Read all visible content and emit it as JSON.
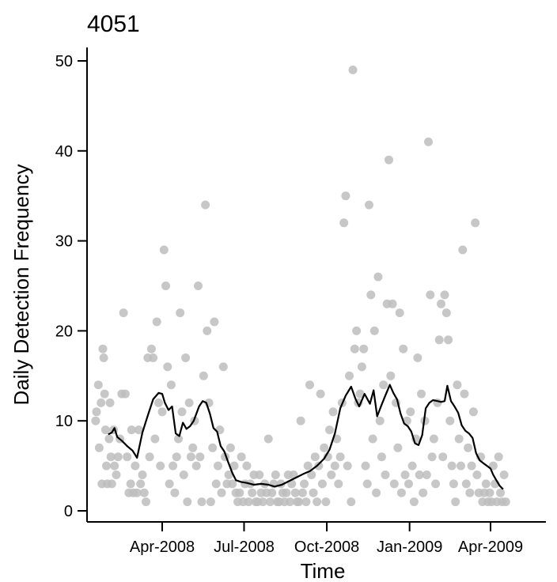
{
  "chart_data": {
    "type": "scatter",
    "title": "4051",
    "xlabel": "Time",
    "ylabel": "Daily Detection Frequency",
    "ylim": [
      0,
      50
    ],
    "xlim": [
      "2008-01-15",
      "2009-06-01"
    ],
    "x_ticks": [
      {
        "date": "2008-04-01",
        "label": "Apr-2008"
      },
      {
        "date": "2008-07-01",
        "label": "Jul-2008"
      },
      {
        "date": "2008-10-01",
        "label": "Oct-2008"
      },
      {
        "date": "2009-01-01",
        "label": "Jan-2009"
      },
      {
        "date": "2009-04-01",
        "label": "Apr-2009"
      }
    ],
    "y_ticks": [
      0,
      10,
      20,
      30,
      40,
      50
    ],
    "grid": false,
    "point_color": "#bdbdbd",
    "line_color": "#000000",
    "points": [
      [
        "2008-01-18",
        10
      ],
      [
        "2008-01-19",
        11
      ],
      [
        "2008-01-21",
        14
      ],
      [
        "2008-01-22",
        7
      ],
      [
        "2008-01-24",
        12
      ],
      [
        "2008-01-25",
        3
      ],
      [
        "2008-01-26",
        18
      ],
      [
        "2008-01-27",
        17
      ],
      [
        "2008-01-28",
        13
      ],
      [
        "2008-01-29",
        9
      ],
      [
        "2008-01-30",
        5
      ],
      [
        "2008-01-31",
        3
      ],
      [
        "2008-02-02",
        8
      ],
      [
        "2008-02-03",
        12
      ],
      [
        "2008-02-04",
        6
      ],
      [
        "2008-02-05",
        3
      ],
      [
        "2008-02-07",
        9
      ],
      [
        "2008-02-08",
        5
      ],
      [
        "2008-02-10",
        4
      ],
      [
        "2008-02-12",
        6
      ],
      [
        "2008-02-14",
        8
      ],
      [
        "2008-02-16",
        13
      ],
      [
        "2008-02-18",
        22
      ],
      [
        "2008-02-20",
        13
      ],
      [
        "2008-02-22",
        6
      ],
      [
        "2008-02-24",
        2
      ],
      [
        "2008-02-26",
        3
      ],
      [
        "2008-02-27",
        9
      ],
      [
        "2008-02-29",
        2
      ],
      [
        "2008-03-02",
        5
      ],
      [
        "2008-03-04",
        2
      ],
      [
        "2008-03-06",
        9
      ],
      [
        "2008-03-08",
        3
      ],
      [
        "2008-03-10",
        4
      ],
      [
        "2008-03-12",
        2
      ],
      [
        "2008-03-14",
        1
      ],
      [
        "2008-03-16",
        17
      ],
      [
        "2008-03-18",
        6
      ],
      [
        "2008-03-20",
        18
      ],
      [
        "2008-03-22",
        17
      ],
      [
        "2008-03-24",
        8
      ],
      [
        "2008-03-26",
        21
      ],
      [
        "2008-03-28",
        12
      ],
      [
        "2008-03-30",
        5
      ],
      [
        "2008-04-01",
        11
      ],
      [
        "2008-04-03",
        29
      ],
      [
        "2008-04-05",
        25
      ],
      [
        "2008-04-07",
        16
      ],
      [
        "2008-04-09",
        3
      ],
      [
        "2008-04-11",
        14
      ],
      [
        "2008-04-13",
        5
      ],
      [
        "2008-04-15",
        2
      ],
      [
        "2008-04-17",
        6
      ],
      [
        "2008-04-19",
        8
      ],
      [
        "2008-04-21",
        22
      ],
      [
        "2008-04-23",
        11
      ],
      [
        "2008-04-25",
        4
      ],
      [
        "2008-04-27",
        17
      ],
      [
        "2008-04-29",
        1
      ],
      [
        "2008-05-01",
        12
      ],
      [
        "2008-05-03",
        6
      ],
      [
        "2008-05-05",
        7
      ],
      [
        "2008-05-07",
        10
      ],
      [
        "2008-05-09",
        5
      ],
      [
        "2008-05-11",
        25
      ],
      [
        "2008-05-13",
        6
      ],
      [
        "2008-05-15",
        1
      ],
      [
        "2008-05-17",
        15
      ],
      [
        "2008-05-19",
        34
      ],
      [
        "2008-05-21",
        20
      ],
      [
        "2008-05-23",
        12
      ],
      [
        "2008-05-25",
        1
      ],
      [
        "2008-05-27",
        7
      ],
      [
        "2008-05-29",
        21
      ],
      [
        "2008-05-31",
        3
      ],
      [
        "2008-06-02",
        5
      ],
      [
        "2008-06-04",
        9
      ],
      [
        "2008-06-06",
        2
      ],
      [
        "2008-06-08",
        16
      ],
      [
        "2008-06-10",
        6
      ],
      [
        "2008-06-12",
        3
      ],
      [
        "2008-06-14",
        4
      ],
      [
        "2008-06-16",
        7
      ],
      [
        "2008-06-18",
        3
      ],
      [
        "2008-06-20",
        5
      ],
      [
        "2008-06-22",
        2
      ],
      [
        "2008-06-24",
        1
      ],
      [
        "2008-06-26",
        2
      ],
      [
        "2008-06-28",
        6
      ],
      [
        "2008-06-30",
        1
      ],
      [
        "2008-07-02",
        3
      ],
      [
        "2008-07-04",
        5
      ],
      [
        "2008-07-06",
        1
      ],
      [
        "2008-07-08",
        3
      ],
      [
        "2008-07-10",
        2
      ],
      [
        "2008-07-12",
        4
      ],
      [
        "2008-07-14",
        1
      ],
      [
        "2008-07-16",
        1
      ],
      [
        "2008-07-18",
        4
      ],
      [
        "2008-07-20",
        2
      ],
      [
        "2008-07-22",
        1
      ],
      [
        "2008-07-24",
        3
      ],
      [
        "2008-07-26",
        2
      ],
      [
        "2008-07-28",
        8
      ],
      [
        "2008-07-30",
        1
      ],
      [
        "2008-08-01",
        2
      ],
      [
        "2008-08-03",
        3
      ],
      [
        "2008-08-05",
        4
      ],
      [
        "2008-08-07",
        1
      ],
      [
        "2008-08-09",
        1
      ],
      [
        "2008-08-11",
        3
      ],
      [
        "2008-08-13",
        2
      ],
      [
        "2008-08-15",
        1
      ],
      [
        "2008-08-17",
        2
      ],
      [
        "2008-08-19",
        4
      ],
      [
        "2008-08-21",
        1
      ],
      [
        "2008-08-23",
        3
      ],
      [
        "2008-08-25",
        4
      ],
      [
        "2008-08-27",
        2
      ],
      [
        "2008-08-29",
        1
      ],
      [
        "2008-08-31",
        1
      ],
      [
        "2008-09-02",
        10
      ],
      [
        "2008-09-04",
        2
      ],
      [
        "2008-09-06",
        3
      ],
      [
        "2008-09-08",
        1
      ],
      [
        "2008-09-10",
        5
      ],
      [
        "2008-09-12",
        14
      ],
      [
        "2008-09-14",
        4
      ],
      [
        "2008-09-16",
        2
      ],
      [
        "2008-09-18",
        6
      ],
      [
        "2008-09-20",
        1
      ],
      [
        "2008-09-22",
        5
      ],
      [
        "2008-09-24",
        13
      ],
      [
        "2008-09-26",
        3
      ],
      [
        "2008-09-28",
        7
      ],
      [
        "2008-09-30",
        1
      ],
      [
        "2008-10-02",
        6
      ],
      [
        "2008-10-04",
        9
      ],
      [
        "2008-10-06",
        4
      ],
      [
        "2008-10-08",
        11
      ],
      [
        "2008-10-10",
        5
      ],
      [
        "2008-10-12",
        8
      ],
      [
        "2008-10-14",
        3
      ],
      [
        "2008-10-16",
        6
      ],
      [
        "2008-10-18",
        12
      ],
      [
        "2008-10-20",
        32
      ],
      [
        "2008-10-22",
        35
      ],
      [
        "2008-10-24",
        5
      ],
      [
        "2008-10-26",
        15
      ],
      [
        "2008-10-28",
        1
      ],
      [
        "2008-10-30",
        49
      ],
      [
        "2008-11-01",
        18
      ],
      [
        "2008-11-03",
        20
      ],
      [
        "2008-11-05",
        12
      ],
      [
        "2008-11-07",
        13
      ],
      [
        "2008-11-09",
        16
      ],
      [
        "2008-11-11",
        18
      ],
      [
        "2008-11-13",
        5
      ],
      [
        "2008-11-15",
        3
      ],
      [
        "2008-11-17",
        34
      ],
      [
        "2008-11-19",
        24
      ],
      [
        "2008-11-21",
        8
      ],
      [
        "2008-11-23",
        20
      ],
      [
        "2008-11-25",
        2
      ],
      [
        "2008-11-27",
        26
      ],
      [
        "2008-11-29",
        10
      ],
      [
        "2008-12-01",
        6
      ],
      [
        "2008-12-03",
        14
      ],
      [
        "2008-12-05",
        4
      ],
      [
        "2008-12-07",
        23
      ],
      [
        "2008-12-09",
        39
      ],
      [
        "2008-12-11",
        15
      ],
      [
        "2008-12-13",
        23
      ],
      [
        "2008-12-15",
        3
      ],
      [
        "2008-12-17",
        12
      ],
      [
        "2008-12-19",
        7
      ],
      [
        "2008-12-21",
        22
      ],
      [
        "2008-12-23",
        2
      ],
      [
        "2008-12-25",
        18
      ],
      [
        "2008-12-27",
        4
      ],
      [
        "2008-12-29",
        10
      ],
      [
        "2008-12-31",
        3
      ],
      [
        "2009-01-02",
        11
      ],
      [
        "2009-01-04",
        5
      ],
      [
        "2009-01-06",
        1
      ],
      [
        "2009-01-08",
        8
      ],
      [
        "2009-01-10",
        17
      ],
      [
        "2009-01-12",
        4
      ],
      [
        "2009-01-14",
        13
      ],
      [
        "2009-01-16",
        2
      ],
      [
        "2009-01-18",
        10
      ],
      [
        "2009-01-20",
        4
      ],
      [
        "2009-01-22",
        41
      ],
      [
        "2009-01-24",
        24
      ],
      [
        "2009-01-26",
        6
      ],
      [
        "2009-01-28",
        8
      ],
      [
        "2009-01-30",
        3
      ],
      [
        "2009-02-01",
        12
      ],
      [
        "2009-02-03",
        19
      ],
      [
        "2009-02-05",
        23
      ],
      [
        "2009-02-07",
        6
      ],
      [
        "2009-02-09",
        24
      ],
      [
        "2009-02-11",
        22
      ],
      [
        "2009-02-13",
        19
      ],
      [
        "2009-02-15",
        10
      ],
      [
        "2009-02-17",
        5
      ],
      [
        "2009-02-19",
        3
      ],
      [
        "2009-02-21",
        1
      ],
      [
        "2009-02-23",
        14
      ],
      [
        "2009-02-25",
        8
      ],
      [
        "2009-02-27",
        5
      ],
      [
        "2009-03-01",
        29
      ],
      [
        "2009-03-03",
        13
      ],
      [
        "2009-03-05",
        3
      ],
      [
        "2009-03-07",
        7
      ],
      [
        "2009-03-09",
        2
      ],
      [
        "2009-03-11",
        5
      ],
      [
        "2009-03-13",
        11
      ],
      [
        "2009-03-15",
        32
      ],
      [
        "2009-03-17",
        4
      ],
      [
        "2009-03-19",
        2
      ],
      [
        "2009-03-21",
        6
      ],
      [
        "2009-03-23",
        1
      ],
      [
        "2009-03-25",
        2
      ],
      [
        "2009-03-27",
        3
      ],
      [
        "2009-03-29",
        1
      ],
      [
        "2009-03-31",
        2
      ],
      [
        "2009-04-02",
        1
      ],
      [
        "2009-04-04",
        5
      ],
      [
        "2009-04-06",
        3
      ],
      [
        "2009-04-08",
        1
      ],
      [
        "2009-04-10",
        6
      ],
      [
        "2009-04-12",
        2
      ],
      [
        "2009-04-14",
        1
      ],
      [
        "2009-04-16",
        4
      ],
      [
        "2009-04-18",
        1
      ]
    ],
    "trend_line": [
      [
        "2008-02-01",
        8.5
      ],
      [
        "2008-02-05",
        8.7
      ],
      [
        "2008-02-08",
        9.2
      ],
      [
        "2008-02-11",
        8.2
      ],
      [
        "2008-02-16",
        7.8
      ],
      [
        "2008-02-22",
        7.2
      ],
      [
        "2008-02-28",
        6.7
      ],
      [
        "2008-03-04",
        5.9
      ],
      [
        "2008-03-10",
        8.7
      ],
      [
        "2008-03-16",
        10.6
      ],
      [
        "2008-03-22",
        12.4
      ],
      [
        "2008-03-28",
        13.1
      ],
      [
        "2008-04-01",
        13.0
      ],
      [
        "2008-04-04",
        12.0
      ],
      [
        "2008-04-08",
        11.2
      ],
      [
        "2008-04-12",
        11.6
      ],
      [
        "2008-04-16",
        8.6
      ],
      [
        "2008-04-20",
        8.3
      ],
      [
        "2008-04-24",
        9.8
      ],
      [
        "2008-04-28",
        9.1
      ],
      [
        "2008-05-02",
        9.4
      ],
      [
        "2008-05-06",
        10.0
      ],
      [
        "2008-05-12",
        11.6
      ],
      [
        "2008-05-16",
        12.2
      ],
      [
        "2008-05-20",
        12.0
      ],
      [
        "2008-05-24",
        10.8
      ],
      [
        "2008-05-28",
        9.2
      ],
      [
        "2008-06-01",
        8.8
      ],
      [
        "2008-06-05",
        7.2
      ],
      [
        "2008-06-09",
        6.6
      ],
      [
        "2008-06-13",
        5.5
      ],
      [
        "2008-06-18",
        4.2
      ],
      [
        "2008-06-22",
        3.4
      ],
      [
        "2008-06-28",
        3.2
      ],
      [
        "2008-07-04",
        3.1
      ],
      [
        "2008-07-12",
        2.9
      ],
      [
        "2008-07-20",
        3.0
      ],
      [
        "2008-07-28",
        2.9
      ],
      [
        "2008-08-04",
        2.7
      ],
      [
        "2008-08-12",
        2.9
      ],
      [
        "2008-08-20",
        3.3
      ],
      [
        "2008-08-28",
        3.7
      ],
      [
        "2008-09-05",
        4.1
      ],
      [
        "2008-09-12",
        4.4
      ],
      [
        "2008-09-20",
        5.0
      ],
      [
        "2008-09-28",
        5.8
      ],
      [
        "2008-10-04",
        6.8
      ],
      [
        "2008-10-10",
        8.6
      ],
      [
        "2008-10-16",
        11.4
      ],
      [
        "2008-10-22",
        12.8
      ],
      [
        "2008-10-28",
        13.8
      ],
      [
        "2008-11-02",
        12.4
      ],
      [
        "2008-11-06",
        11.6
      ],
      [
        "2008-11-12",
        13.0
      ],
      [
        "2008-11-18",
        11.9
      ],
      [
        "2008-11-22",
        13.4
      ],
      [
        "2008-11-26",
        10.5
      ],
      [
        "2008-12-01",
        11.8
      ],
      [
        "2008-12-05",
        12.8
      ],
      [
        "2008-12-10",
        14.0
      ],
      [
        "2008-12-14",
        13.1
      ],
      [
        "2008-12-18",
        12.4
      ],
      [
        "2008-12-22",
        10.8
      ],
      [
        "2008-12-26",
        9.7
      ],
      [
        "2008-12-30",
        9.4
      ],
      [
        "2009-01-03",
        8.8
      ],
      [
        "2009-01-07",
        7.5
      ],
      [
        "2009-01-11",
        7.3
      ],
      [
        "2009-01-15",
        8.4
      ],
      [
        "2009-01-19",
        11.4
      ],
      [
        "2009-01-23",
        12.0
      ],
      [
        "2009-01-27",
        12.3
      ],
      [
        "2009-02-01",
        12.2
      ],
      [
        "2009-02-05",
        12.1
      ],
      [
        "2009-02-09",
        12.2
      ],
      [
        "2009-02-12",
        13.9
      ],
      [
        "2009-02-16",
        12.2
      ],
      [
        "2009-02-20",
        11.6
      ],
      [
        "2009-02-24",
        10.9
      ],
      [
        "2009-02-28",
        9.5
      ],
      [
        "2009-03-04",
        8.9
      ],
      [
        "2009-03-08",
        8.6
      ],
      [
        "2009-03-12",
        8.1
      ],
      [
        "2009-03-16",
        6.4
      ],
      [
        "2009-03-20",
        5.6
      ],
      [
        "2009-03-24",
        5.3
      ],
      [
        "2009-03-28",
        5.0
      ],
      [
        "2009-04-01",
        4.7
      ],
      [
        "2009-04-04",
        4.0
      ],
      [
        "2009-04-08",
        3.3
      ],
      [
        "2009-04-11",
        2.8
      ],
      [
        "2009-04-15",
        2.4
      ]
    ]
  }
}
